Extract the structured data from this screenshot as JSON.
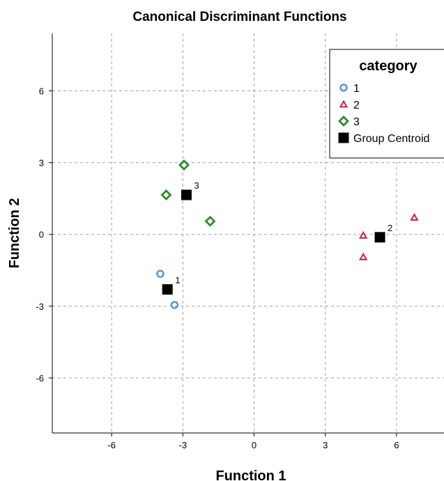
{
  "chart_data": {
    "type": "scatter",
    "title": "Canonical Discriminant Functions",
    "xlabel": "Function 1",
    "ylabel": "Function 2",
    "xlim": [
      -8.5,
      8.0
    ],
    "ylim": [
      -8.3,
      8.4
    ],
    "xticks": [
      -6,
      -3,
      0,
      3,
      6
    ],
    "yticks": [
      -6,
      -3,
      0,
      3,
      6
    ],
    "grid": true,
    "legend": {
      "title": "category",
      "placement": "top-right",
      "entries": [
        "1",
        "2",
        "3",
        "Group Centroid"
      ]
    },
    "series": [
      {
        "name": "1",
        "marker": "circle",
        "color": "#5b93d8",
        "points": [
          {
            "x": -3.95,
            "y": -1.65
          },
          {
            "x": -3.35,
            "y": -2.95
          }
        ]
      },
      {
        "name": "2",
        "marker": "triangle",
        "color": "#c8204a",
        "points": [
          {
            "x": 4.6,
            "y": -0.05
          },
          {
            "x": 4.6,
            "y": -0.95
          },
          {
            "x": 6.75,
            "y": 0.7
          }
        ]
      },
      {
        "name": "3",
        "marker": "diamond",
        "color": "#2e8b2e",
        "points": [
          {
            "x": -2.95,
            "y": 2.9
          },
          {
            "x": -3.7,
            "y": 1.65
          },
          {
            "x": -1.85,
            "y": 0.55
          }
        ]
      }
    ],
    "centroids": [
      {
        "label": "1",
        "x": -3.65,
        "y": -2.3
      },
      {
        "label": "2",
        "x": 5.3,
        "y": -0.12
      },
      {
        "label": "3",
        "x": -2.85,
        "y": 1.65
      }
    ],
    "centroid_color": "#000000"
  }
}
